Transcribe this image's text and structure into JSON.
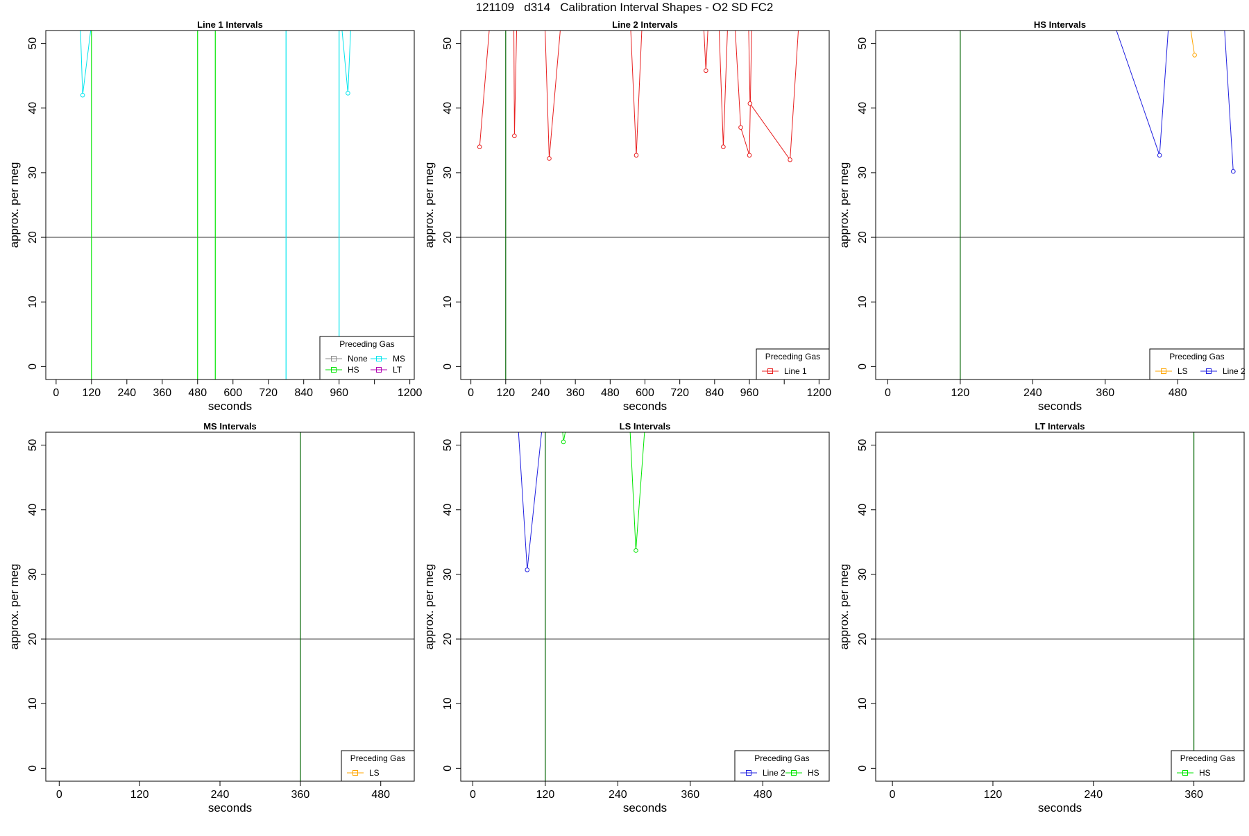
{
  "figure_title": "121109   d314   Calibration Interval Shapes - O2 SD FC2",
  "colors": {
    "None": "#8c8c8c",
    "HS": "#00e600",
    "MS": "#00e5ee",
    "LT": "#b000b0",
    "Line 1": "#e82020",
    "Line 2": "#2020e0",
    "LS": "#ffa500",
    "axis": "#000000",
    "refline": "#555555",
    "vline": "#006400"
  },
  "chart_data": [
    {
      "type": "line",
      "title": "Line 1 Intervals",
      "xlabel": "seconds",
      "ylabel": "approx. per meg",
      "xlim": [
        -35,
        1215
      ],
      "ylim": [
        -2,
        52
      ],
      "xticks": [
        0,
        120,
        240,
        360,
        480,
        600,
        720,
        840,
        960,
        1080,
        1200
      ],
      "xtick_labels": [
        "0",
        "120",
        "240",
        "360",
        "480",
        "600",
        "720",
        "840",
        "960",
        "",
        "1200"
      ],
      "yticks": [
        0,
        10,
        20,
        30,
        40,
        50
      ],
      "hline": 20,
      "vlines": [
        {
          "x": 120,
          "color": "HS"
        },
        {
          "x": 480,
          "color": "HS"
        },
        {
          "x": 540,
          "color": "HS"
        },
        {
          "x": 780,
          "color": "MS"
        },
        {
          "x": 960,
          "color": "MS"
        }
      ],
      "series": [
        {
          "gas": "MS",
          "points": [
            [
              82,
              53
            ],
            [
              90,
              42
            ],
            [
              120,
              53
            ]
          ]
        },
        {
          "gas": "MS",
          "points": [
            [
              968,
              53
            ],
            [
              990,
              42.3
            ],
            [
              1000,
              53
            ]
          ]
        }
      ],
      "legend": {
        "title": "Preceding Gas",
        "position": "bottom-right",
        "cols": 2,
        "entries": [
          "None",
          "HS",
          "MS",
          "LT"
        ]
      }
    },
    {
      "type": "line",
      "title": "Line 2 Intervals",
      "xlabel": "seconds",
      "ylabel": "approx. per meg",
      "xlim": [
        -35,
        1235
      ],
      "ylim": [
        -2,
        52
      ],
      "xticks": [
        0,
        120,
        240,
        360,
        480,
        600,
        720,
        840,
        960,
        1080,
        1200
      ],
      "xtick_labels": [
        "0",
        "120",
        "240",
        "360",
        "480",
        "600",
        "720",
        "840",
        "960",
        "",
        "1200"
      ],
      "yticks": [
        0,
        10,
        20,
        30,
        40,
        50
      ],
      "hline": 20,
      "vlines": [
        {
          "x": 120,
          "color": "vline"
        }
      ],
      "series": [
        {
          "gas": "Line 1",
          "points": [
            [
              30,
              34
            ],
            [
              65,
              53
            ]
          ]
        },
        {
          "gas": "Line 1",
          "points": [
            [
              148,
              53
            ],
            [
              150,
              35.7
            ],
            [
              158,
              53
            ]
          ]
        },
        {
          "gas": "Line 1",
          "points": [
            [
              255,
              53
            ],
            [
              270,
              32.2
            ],
            [
              310,
              53
            ]
          ]
        },
        {
          "gas": "Line 1",
          "points": [
            [
              550,
              53
            ],
            [
              570,
              32.7
            ],
            [
              590,
              53
            ]
          ]
        },
        {
          "gas": "Line 1",
          "points": [
            [
              802,
              53
            ],
            [
              810,
              45.8
            ],
            [
              818,
              53
            ]
          ]
        },
        {
          "gas": "Line 1",
          "points": [
            [
              855,
              53
            ],
            [
              870,
              34
            ],
            [
              885,
              53
            ]
          ]
        },
        {
          "gas": "Line 1",
          "points": [
            [
              910,
              53
            ],
            [
              930,
              37
            ],
            [
              960,
              32.7
            ],
            [
              968,
              53
            ]
          ]
        },
        {
          "gas": "Line 1",
          "points": [
            [
              957,
              53
            ],
            [
              962,
              40.7
            ],
            [
              1100,
              32
            ],
            [
              1130,
              53
            ]
          ]
        }
      ],
      "legend": {
        "title": "Preceding Gas",
        "position": "bottom-right",
        "cols": 1,
        "entries": [
          "Line 1"
        ]
      }
    },
    {
      "type": "line",
      "title": "HS Intervals",
      "xlabel": "seconds",
      "ylabel": "approx. per meg",
      "xlim": [
        -20,
        590
      ],
      "ylim": [
        -2,
        52
      ],
      "xticks": [
        0,
        120,
        240,
        360,
        480
      ],
      "xtick_labels": [
        "0",
        "120",
        "240",
        "360",
        "480"
      ],
      "yticks": [
        0,
        10,
        20,
        30,
        40,
        50
      ],
      "hline": 20,
      "vlines": [
        {
          "x": 120,
          "color": "vline"
        }
      ],
      "series": [
        {
          "gas": "Line 2",
          "points": [
            [
              375,
              53
            ],
            [
              450,
              32.7
            ],
            [
              465,
              53
            ]
          ]
        },
        {
          "gas": "LS",
          "points": [
            [
              500,
              53
            ],
            [
              508,
              48.2
            ]
          ]
        },
        {
          "gas": "Line 2",
          "points": [
            [
              557,
              53
            ],
            [
              572,
              30.2
            ]
          ]
        }
      ],
      "legend": {
        "title": "Preceding Gas",
        "position": "bottom-right",
        "cols": 2,
        "entries": [
          "LS",
          "Line 2"
        ]
      }
    },
    {
      "type": "line",
      "title": "MS Intervals",
      "xlabel": "seconds",
      "ylabel": "approx. per meg",
      "xlim": [
        -20,
        530
      ],
      "ylim": [
        -2,
        52
      ],
      "xticks": [
        0,
        120,
        240,
        360,
        480
      ],
      "xtick_labels": [
        "0",
        "120",
        "240",
        "360",
        "480"
      ],
      "yticks": [
        0,
        10,
        20,
        30,
        40,
        50
      ],
      "hline": 20,
      "vlines": [
        {
          "x": 360,
          "color": "vline"
        }
      ],
      "series": [],
      "legend": {
        "title": "Preceding Gas",
        "position": "bottom-right",
        "cols": 1,
        "entries": [
          "LS"
        ]
      }
    },
    {
      "type": "line",
      "title": "LS Intervals",
      "xlabel": "seconds",
      "ylabel": "approx. per meg",
      "xlim": [
        -20,
        590
      ],
      "ylim": [
        -2,
        52
      ],
      "xticks": [
        0,
        120,
        240,
        360,
        480
      ],
      "xtick_labels": [
        "0",
        "120",
        "240",
        "360",
        "480"
      ],
      "yticks": [
        0,
        10,
        20,
        30,
        40,
        50
      ],
      "hline": 20,
      "vlines": [
        {
          "x": 120,
          "color": "vline"
        }
      ],
      "series": [
        {
          "gas": "Line 2",
          "points": [
            [
              75,
              53
            ],
            [
              90,
              30.7
            ],
            [
              115,
              53
            ]
          ]
        },
        {
          "gas": "HS",
          "points": [
            [
              148,
              53
            ],
            [
              150,
              50.5
            ],
            [
              155,
              53
            ]
          ]
        },
        {
          "gas": "HS",
          "points": [
            [
              260,
              53
            ],
            [
              270,
              33.7
            ],
            [
              285,
              53
            ]
          ]
        }
      ],
      "legend": {
        "title": "Preceding Gas",
        "position": "bottom-right",
        "cols": 2,
        "entries": [
          "Line 2",
          "HS"
        ]
      }
    },
    {
      "type": "line",
      "title": "LT Intervals",
      "xlabel": "seconds",
      "ylabel": "approx. per meg",
      "xlim": [
        -20,
        420
      ],
      "ylim": [
        -2,
        52
      ],
      "xticks": [
        0,
        120,
        240,
        360
      ],
      "xtick_labels": [
        "0",
        "120",
        "240",
        "360"
      ],
      "yticks": [
        0,
        10,
        20,
        30,
        40,
        50
      ],
      "hline": 20,
      "vlines": [
        {
          "x": 360,
          "color": "vline"
        }
      ],
      "series": [],
      "legend": {
        "title": "Preceding Gas",
        "position": "bottom-right",
        "cols": 1,
        "entries": [
          "HS"
        ]
      }
    }
  ]
}
